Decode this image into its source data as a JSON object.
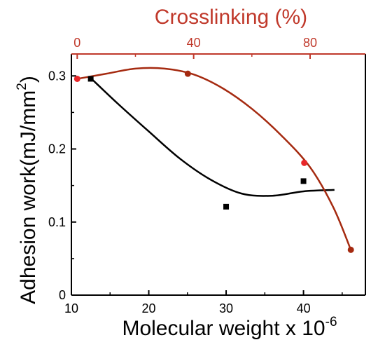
{
  "chart_data": {
    "type": "scatter",
    "xlabel": "Molecular weight x 10",
    "xlabel_sup": "-6",
    "ylabel": "Adhesion work(mJ/mm",
    "ylabel_sup": "2",
    "ylabel_end": ")",
    "top_xlabel": "Crosslinking (%)",
    "xlim": [
      10,
      48
    ],
    "ylim": [
      0,
      0.33
    ],
    "top_xlim": [
      -2,
      99
    ],
    "x_ticks": [
      10,
      20,
      30,
      40
    ],
    "y_ticks": [
      0,
      0.1,
      0.2,
      0.3
    ],
    "y_tick_labels": [
      "0",
      "0.1",
      "0.2",
      "0.3"
    ],
    "top_ticks": [
      0,
      40,
      80
    ],
    "grid": false,
    "colors": {
      "axis": "#000000",
      "top_axis": "#c0392b",
      "molecular_points": "#000000",
      "molecular_fit": "#000000",
      "crosslink_points": "#e8272a",
      "crosslink_fit": "#a52a10"
    },
    "series": [
      {
        "axis": "bottom",
        "marker": "square",
        "points": [
          {
            "x": 12.5,
            "y": 0.296
          },
          {
            "x": 30,
            "y": 0.121
          },
          {
            "x": 40,
            "y": 0.156
          }
        ],
        "fit": [
          {
            "x": 12.5,
            "y": 0.297
          },
          {
            "x": 16,
            "y": 0.262
          },
          {
            "x": 20,
            "y": 0.224
          },
          {
            "x": 24,
            "y": 0.187
          },
          {
            "x": 28,
            "y": 0.158
          },
          {
            "x": 32,
            "y": 0.139
          },
          {
            "x": 36,
            "y": 0.136
          },
          {
            "x": 40,
            "y": 0.142
          },
          {
            "x": 44,
            "y": 0.144
          }
        ]
      },
      {
        "axis": "top",
        "marker": "circle",
        "points": [
          {
            "x": 0,
            "y": 0.296
          },
          {
            "x": 38,
            "y": 0.303
          },
          {
            "x": 78,
            "y": 0.181
          },
          {
            "x": 94,
            "y": 0.062
          }
        ],
        "fit": [
          {
            "x": 0,
            "y": 0.296
          },
          {
            "x": 10,
            "y": 0.303
          },
          {
            "x": 20,
            "y": 0.31
          },
          {
            "x": 30,
            "y": 0.31
          },
          {
            "x": 40,
            "y": 0.302
          },
          {
            "x": 50,
            "y": 0.283
          },
          {
            "x": 60,
            "y": 0.255
          },
          {
            "x": 70,
            "y": 0.219
          },
          {
            "x": 80,
            "y": 0.175
          },
          {
            "x": 88,
            "y": 0.12
          },
          {
            "x": 94,
            "y": 0.062
          }
        ]
      }
    ]
  }
}
